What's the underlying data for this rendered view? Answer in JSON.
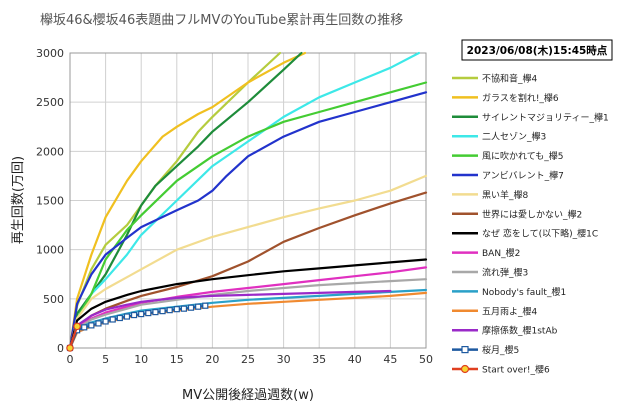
{
  "chart_data": {
    "type": "line",
    "title": "欅坂46&櫻坂46表題曲フルMVのYouTube累計再生回数の推移",
    "timestamp": "2023/06/08(木)15:45時点",
    "xlabel": "MV公開後経過週数(w)",
    "ylabel": "再生回数(万回)",
    "xlim": [
      0,
      50
    ],
    "ylim": [
      0,
      3000
    ],
    "xticks": [
      0,
      5,
      10,
      15,
      20,
      25,
      30,
      35,
      40,
      45,
      50
    ],
    "yticks": [
      0,
      500,
      1000,
      1500,
      2000,
      2500,
      3000
    ],
    "grid": true,
    "legend_position": "right",
    "series": [
      {
        "name": "不協和音_欅4",
        "color": "#b5cc3e",
        "x": [
          0,
          1,
          3,
          5,
          8,
          10,
          12,
          15,
          18,
          20,
          25,
          29.5
        ],
        "y": [
          0,
          430,
          800,
          1050,
          1250,
          1450,
          1650,
          1900,
          2200,
          2350,
          2700,
          3000
        ]
      },
      {
        "name": "ガラスを割れ!_欅6",
        "color": "#f0c020",
        "x": [
          0,
          1,
          3,
          5,
          8,
          10,
          13,
          15,
          18,
          20,
          25,
          30,
          33
        ],
        "y": [
          0,
          500,
          950,
          1330,
          1700,
          1900,
          2150,
          2250,
          2380,
          2450,
          2700,
          2900,
          3000
        ]
      },
      {
        "name": "サイレントマジョリティー_欅1",
        "color": "#1e8c3a",
        "x": [
          0,
          1,
          3,
          5,
          8,
          10,
          12,
          15,
          18,
          20,
          25,
          30,
          32.5
        ],
        "y": [
          0,
          350,
          550,
          750,
          1150,
          1450,
          1650,
          1850,
          2050,
          2200,
          2500,
          2830,
          3000
        ]
      },
      {
        "name": "二人セゾン_欅3",
        "color": "#3de8e8",
        "x": [
          0,
          1,
          3,
          5,
          8,
          10,
          15,
          20,
          25,
          30,
          35,
          40,
          45,
          49
        ],
        "y": [
          0,
          300,
          550,
          700,
          950,
          1150,
          1500,
          1850,
          2100,
          2350,
          2550,
          2700,
          2850,
          3000
        ]
      },
      {
        "name": "風に吹かれても_欅5",
        "color": "#44cc33",
        "x": [
          0,
          1,
          3,
          5,
          8,
          10,
          15,
          20,
          25,
          30,
          35,
          40,
          45,
          50
        ],
        "y": [
          0,
          300,
          550,
          900,
          1200,
          1350,
          1700,
          1950,
          2150,
          2300,
          2400,
          2500,
          2600,
          2700
        ]
      },
      {
        "name": "アンビバレント_欅7",
        "color": "#2233cc",
        "x": [
          0,
          1,
          3,
          5,
          8,
          10,
          15,
          18,
          20,
          22,
          25,
          30,
          35,
          40,
          45,
          50
        ],
        "y": [
          0,
          450,
          750,
          950,
          1120,
          1230,
          1400,
          1500,
          1600,
          1750,
          1950,
          2150,
          2300,
          2400,
          2500,
          2600
        ]
      },
      {
        "name": "黒い羊_欅8",
        "color": "#f2dc90",
        "x": [
          0,
          1,
          3,
          5,
          8,
          10,
          15,
          20,
          25,
          30,
          35,
          40,
          45,
          50
        ],
        "y": [
          0,
          300,
          500,
          600,
          720,
          800,
          1000,
          1130,
          1230,
          1330,
          1420,
          1500,
          1600,
          1750
        ]
      },
      {
        "name": "世界には愛しかない_欅2",
        "color": "#a0522d",
        "x": [
          0,
          1,
          3,
          5,
          8,
          10,
          15,
          20,
          25,
          30,
          35,
          40,
          45,
          50
        ],
        "y": [
          0,
          220,
          330,
          400,
          480,
          530,
          620,
          730,
          880,
          1080,
          1220,
          1350,
          1470,
          1580
        ]
      },
      {
        "name": "なぜ 恋をして(以下略)_櫻1C",
        "color": "#000000",
        "x": [
          0,
          1,
          3,
          5,
          8,
          10,
          15,
          20,
          25,
          30,
          35,
          40,
          45,
          50
        ],
        "y": [
          0,
          280,
          400,
          470,
          540,
          580,
          650,
          700,
          740,
          780,
          810,
          840,
          870,
          900
        ]
      },
      {
        "name": "BAN_櫻2",
        "color": "#e030c0",
        "x": [
          0,
          1,
          3,
          5,
          8,
          10,
          15,
          20,
          25,
          30,
          35,
          40,
          45,
          50
        ],
        "y": [
          0,
          210,
          300,
          360,
          420,
          460,
          520,
          570,
          610,
          650,
          690,
          730,
          770,
          820
        ]
      },
      {
        "name": "流れ弾_櫻3",
        "color": "#a8a8a8",
        "x": [
          0,
          1,
          3,
          5,
          8,
          10,
          15,
          20,
          25,
          30,
          35,
          40,
          45,
          50
        ],
        "y": [
          0,
          200,
          290,
          340,
          400,
          440,
          490,
          540,
          580,
          610,
          640,
          660,
          680,
          700
        ]
      },
      {
        "name": "Nobody's fault_櫻1",
        "color": "#2aa0c8",
        "x": [
          0,
          1,
          3,
          5,
          8,
          10,
          15,
          20,
          25,
          30,
          35,
          40,
          45,
          50
        ],
        "y": [
          0,
          190,
          260,
          300,
          350,
          380,
          420,
          460,
          490,
          510,
          530,
          550,
          570,
          590
        ]
      },
      {
        "name": "五月雨よ_櫻4",
        "color": "#f08a30",
        "x": [
          0,
          1,
          3,
          5,
          8,
          10,
          15,
          20,
          25,
          30,
          35,
          40,
          45,
          50
        ],
        "y": [
          0,
          160,
          220,
          260,
          310,
          340,
          380,
          420,
          450,
          470,
          490,
          510,
          530,
          560
        ]
      },
      {
        "name": "摩擦係数_櫻1stAb",
        "color": "#9a2ac8",
        "x": [
          0,
          1,
          3,
          5,
          8,
          10,
          15,
          20,
          25,
          30,
          35,
          40,
          45
        ],
        "y": [
          0,
          230,
          330,
          390,
          440,
          470,
          510,
          530,
          540,
          550,
          560,
          570,
          580
        ]
      },
      {
        "name": "桜月_櫻5",
        "color": "#1e5aa0",
        "marker": "square",
        "x": [
          0,
          1,
          2,
          3,
          4,
          5,
          6,
          7,
          8,
          9,
          10,
          11,
          12,
          13,
          14,
          15,
          16,
          17,
          18,
          19
        ],
        "y": [
          0,
          180,
          210,
          230,
          250,
          270,
          290,
          305,
          320,
          335,
          345,
          355,
          365,
          375,
          385,
          395,
          400,
          410,
          420,
          430
        ]
      },
      {
        "name": "Start over!_櫻6",
        "color": "#e04020",
        "marker": "circle",
        "x": [
          0,
          1
        ],
        "y": [
          0,
          220
        ]
      }
    ]
  }
}
